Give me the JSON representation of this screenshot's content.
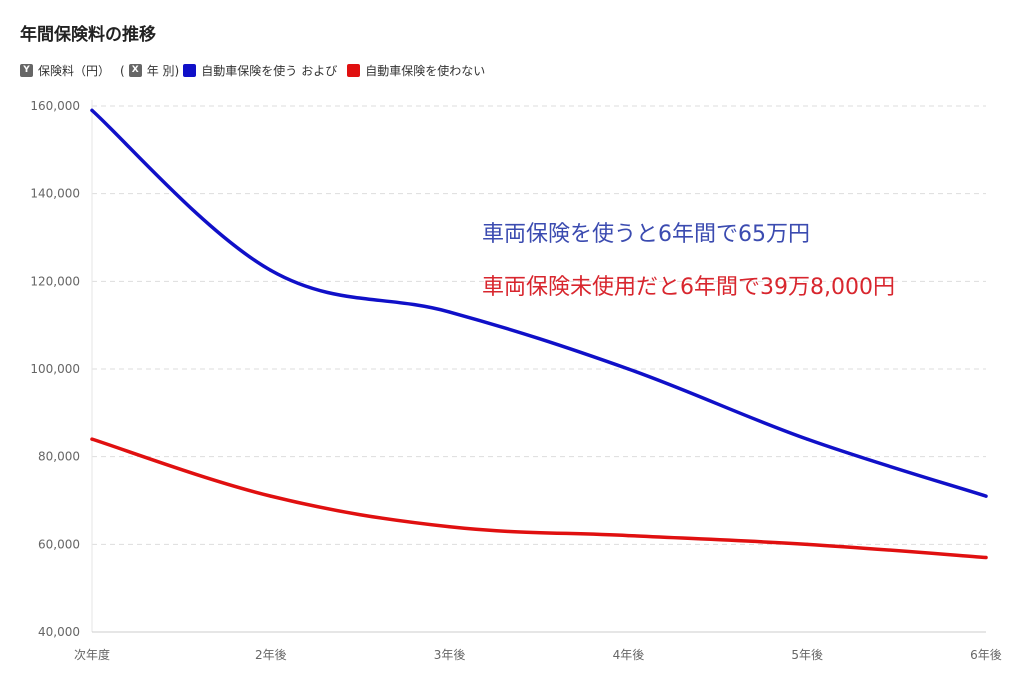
{
  "chart_data": {
    "type": "line",
    "title": "年間保険料の推移",
    "y_axis_badge": "Y",
    "y_axis_label": "保険料（円）",
    "x_axis_open": "(",
    "x_axis_badge": "X",
    "x_axis_label": "年 別)",
    "categories": [
      "次年度",
      "2年後",
      "3年後",
      "4年後",
      "5年後",
      "6年後"
    ],
    "series": [
      {
        "name": "自動車保険を使う",
        "color": "#1010c8",
        "values": [
          159000,
          122500,
          113000,
          100000,
          84000,
          71000
        ]
      },
      {
        "name": "自動車保険を使わない",
        "color": "#e01010",
        "values": [
          84000,
          71000,
          64000,
          62000,
          60000,
          57000
        ]
      }
    ],
    "legend_joiner": "および",
    "ylim": [
      40000,
      160000
    ],
    "yticks": [
      40000,
      60000,
      80000,
      100000,
      120000,
      140000,
      160000
    ],
    "grid": true,
    "annotations": [
      {
        "text": "車両保険を使うと6年間で65万円",
        "color": "#3b4bb0"
      },
      {
        "text": "車両保険未使用だと6年間で39万8,000円",
        "color": "#d8262e"
      }
    ]
  }
}
